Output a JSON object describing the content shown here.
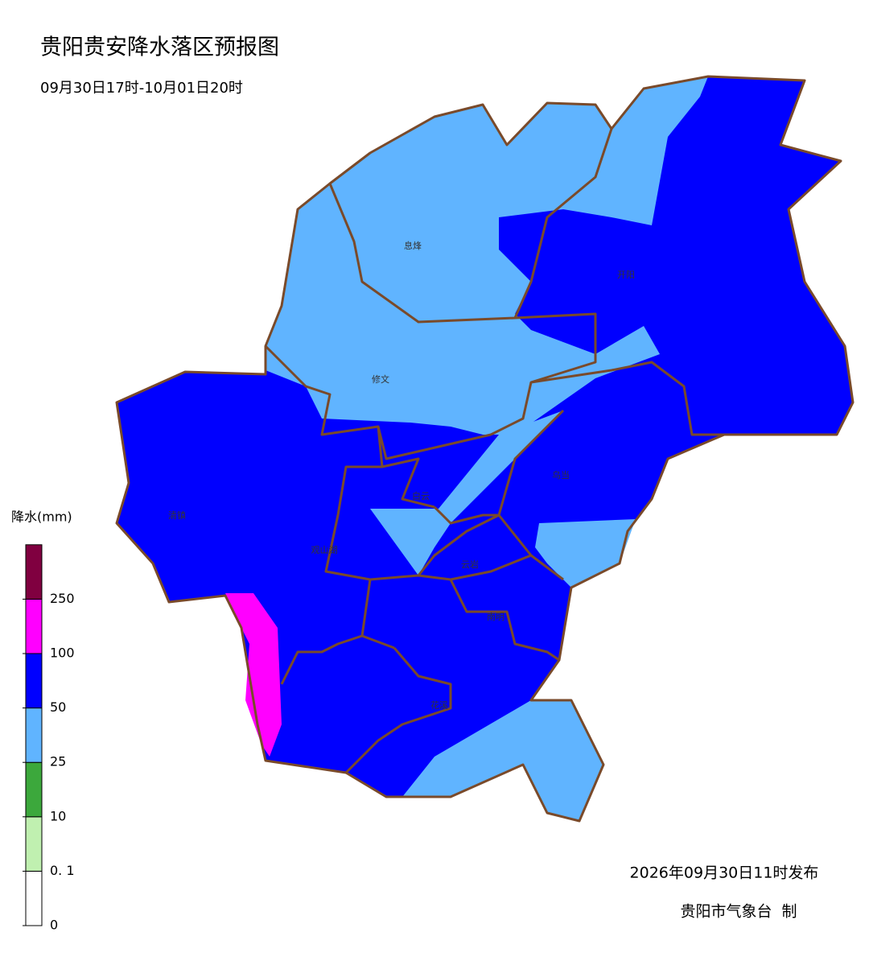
{
  "header": {
    "title": "贵阳贵安降水落区预报图",
    "subtitle": "09月30日17时-10月01日20时"
  },
  "districts": [
    "息烽",
    "开阳",
    "修文",
    "白云",
    "乌当",
    "清镇",
    "观山湖",
    "云岩",
    "南明",
    "花溪"
  ],
  "legend": {
    "title": "降水(mm)",
    "ticks": [
      "0",
      "0. 1",
      "10",
      "25",
      "50",
      "100",
      "250"
    ],
    "colors": [
      "#ffffff",
      "#c0f0b0",
      "#3ca83c",
      "#60b4ff",
      "#0000ff",
      "#ff00ff",
      "#800040"
    ]
  },
  "footer": {
    "issued": "2026年09月30日11时发布",
    "agency": "贵阳市气象台  制"
  }
}
